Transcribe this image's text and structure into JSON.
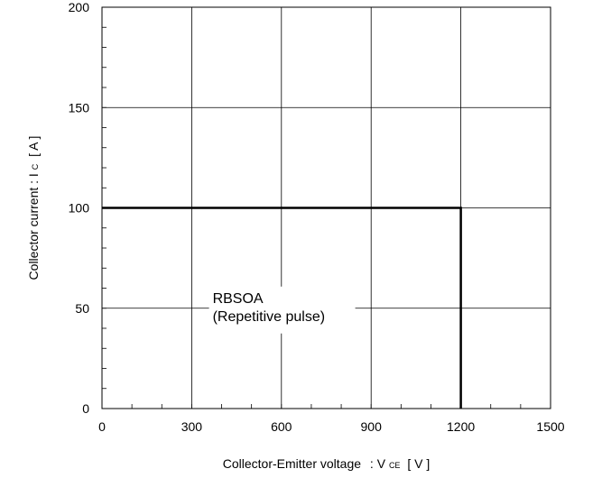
{
  "chart_data": {
    "type": "line",
    "title": "",
    "xlabel": "Collector-Emitter voltage",
    "xlabel_symbol": "V",
    "xlabel_sub": "CE",
    "xlabel_unit": "[ V ]",
    "ylabel": "Collector current : I",
    "ylabel_sub": "C",
    "ylabel_unit": "[ A ]",
    "xlim": [
      0,
      1500
    ],
    "ylim": [
      0,
      200
    ],
    "x_ticks": [
      0,
      300,
      600,
      900,
      1200,
      1500
    ],
    "y_ticks": [
      0,
      50,
      100,
      150,
      200
    ],
    "x_minor_step": 100,
    "y_minor_step": 10,
    "grid": true,
    "series": [
      {
        "x": [
          0,
          1200,
          1200
        ],
        "y": [
          100,
          100,
          0
        ]
      }
    ],
    "annotations": [
      {
        "lines": [
          "RBSOA",
          "(Repetitive pulse)"
        ],
        "x": 370,
        "y": 50
      }
    ]
  }
}
